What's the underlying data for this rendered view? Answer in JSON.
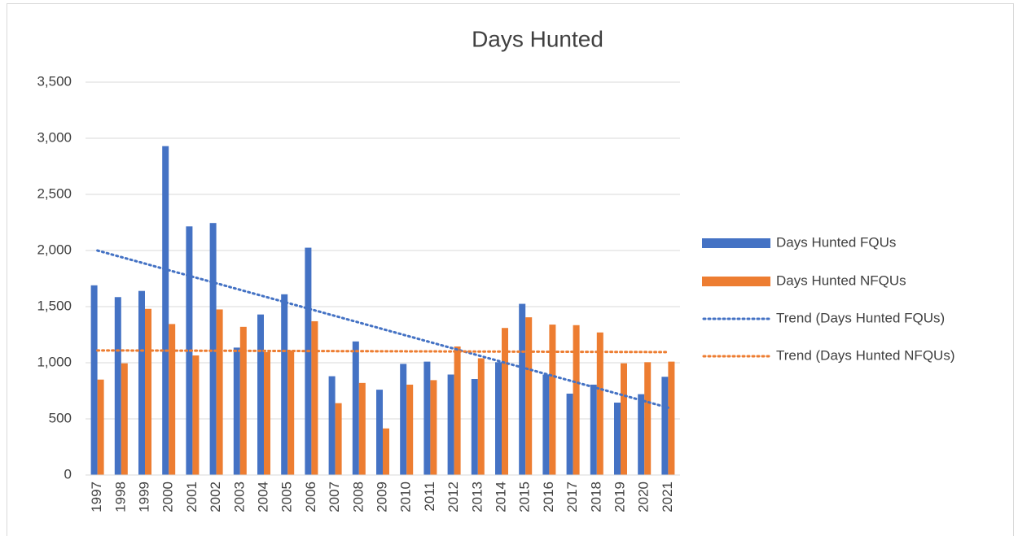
{
  "chart_data": {
    "type": "bar",
    "title": "Days Hunted",
    "categories": [
      "1997",
      "1998",
      "1999",
      "2000",
      "2001",
      "2002",
      "2003",
      "2004",
      "2005",
      "2006",
      "2007",
      "2008",
      "2009",
      "2010",
      "2011",
      "2012",
      "2013",
      "2014",
      "2015",
      "2016",
      "2017",
      "2018",
      "2019",
      "2020",
      "2021"
    ],
    "series": [
      {
        "name": "Days Hunted FQUs",
        "color": "#4472c4",
        "values": [
          1690,
          1585,
          1640,
          2930,
          2215,
          2245,
          1135,
          1430,
          1610,
          2025,
          880,
          1190,
          760,
          990,
          1010,
          895,
          855,
          1005,
          1525,
          895,
          725,
          805,
          645,
          720,
          875
        ]
      },
      {
        "name": "Days Hunted NFQUs",
        "color": "#ed7d31",
        "values": [
          850,
          995,
          1480,
          1345,
          1065,
          1475,
          1320,
          1095,
          1110,
          1370,
          640,
          820,
          415,
          805,
          845,
          1145,
          1040,
          1310,
          1405,
          1340,
          1335,
          1270,
          995,
          1005,
          1010
        ]
      }
    ],
    "trendlines": [
      {
        "name": "Trend (Days Hunted FQUs)",
        "color": "#4472c4",
        "values": [
          2000,
          600
        ]
      },
      {
        "name": "Trend (Days Hunted NFQUs)",
        "color": "#ed7d31",
        "values": [
          1110,
          1095
        ]
      }
    ],
    "ylim": [
      0,
      3500
    ],
    "yticks": [
      0,
      500,
      {
        "value": 1000,
        "label": "1,000"
      },
      {
        "value": 1500,
        "label": "1,500"
      },
      {
        "value": 2000,
        "label": "2,000"
      },
      {
        "value": 2500,
        "label": "2,500"
      },
      {
        "value": 3000,
        "label": "3,000"
      },
      {
        "value": 3500,
        "label": "3,500"
      }
    ],
    "grid": true,
    "legend": "right"
  }
}
